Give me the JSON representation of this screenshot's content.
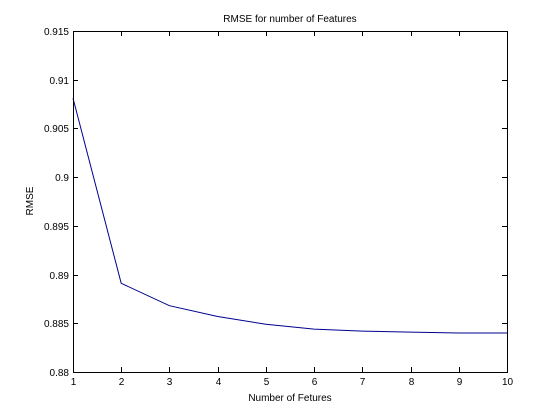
{
  "chart_data": {
    "type": "line",
    "title": "RMSE for number of Features",
    "xlabel": "Number of Fetures",
    "ylabel": "RMSE",
    "xlim": [
      1,
      10
    ],
    "ylim": [
      0.88,
      0.915
    ],
    "xticks": [
      "1",
      "2",
      "3",
      "4",
      "5",
      "6",
      "7",
      "8",
      "9",
      "10"
    ],
    "yticks": [
      "0.88",
      "0.885",
      "0.89",
      "0.895",
      "0.9",
      "0.905",
      "0.91",
      "0.915"
    ],
    "grid": false,
    "series": [
      {
        "color": "#00008f",
        "x": [
          1,
          2,
          3,
          4,
          5,
          6,
          7,
          8,
          9,
          10
        ],
        "y": [
          0.9081,
          0.8891,
          0.8868,
          0.8857,
          0.8849,
          0.8844,
          0.8842,
          0.8841,
          0.884,
          0.884
        ]
      }
    ]
  }
}
